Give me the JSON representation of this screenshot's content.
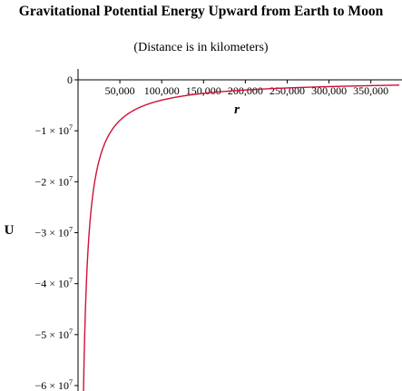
{
  "chart_data": {
    "type": "line",
    "title": "Gravitational Potential Energy Upward from Earth to Moon",
    "subtitle": "(Distance is in kilometers)",
    "xlabel": "r",
    "ylabel": "U",
    "xlim": [
      0,
      384000
    ],
    "ylim": [
      -60000000,
      0
    ],
    "x_ticks": [
      {
        "value": 50000,
        "label": "50,000"
      },
      {
        "value": 100000,
        "label": "100,000"
      },
      {
        "value": 150000,
        "label": "150,000"
      },
      {
        "value": 200000,
        "label": "200,000"
      },
      {
        "value": 250000,
        "label": "250,000"
      },
      {
        "value": 300000,
        "label": "300,000"
      },
      {
        "value": 350000,
        "label": "350,000"
      }
    ],
    "y_ticks": [
      {
        "value": 0,
        "label": "0"
      },
      {
        "value": -10000000,
        "mantissa": "−1 × 10",
        "exponent": "7"
      },
      {
        "value": -20000000,
        "mantissa": "−2 × 10",
        "exponent": "7"
      },
      {
        "value": -30000000,
        "mantissa": "−3 × 10",
        "exponent": "7"
      },
      {
        "value": -40000000,
        "mantissa": "−4 × 10",
        "exponent": "7"
      },
      {
        "value": -50000000,
        "mantissa": "−5 × 10",
        "exponent": "7"
      },
      {
        "value": -60000000,
        "mantissa": "−6 × 10",
        "exponent": "7"
      }
    ],
    "grid": false,
    "series": [
      {
        "color": "#d0103a",
        "x": [
          6371,
          7000,
          8000,
          10000,
          12000,
          15000,
          20000,
          25000,
          30000,
          40000,
          50000,
          60000,
          75000,
          100000,
          125000,
          150000,
          200000,
          250000,
          300000,
          350000,
          384000
        ],
        "y": [
          -62560000,
          -56940000,
          -49820000,
          -39860000,
          -33210000,
          -26570000,
          -19930000,
          -15940000,
          -13290000,
          -9964000,
          -7971000,
          -6643000,
          -5314000,
          -3986000,
          -3189000,
          -2657000,
          -1993000,
          -1594000,
          -1329000,
          -1139000,
          -1038000
        ]
      }
    ]
  }
}
